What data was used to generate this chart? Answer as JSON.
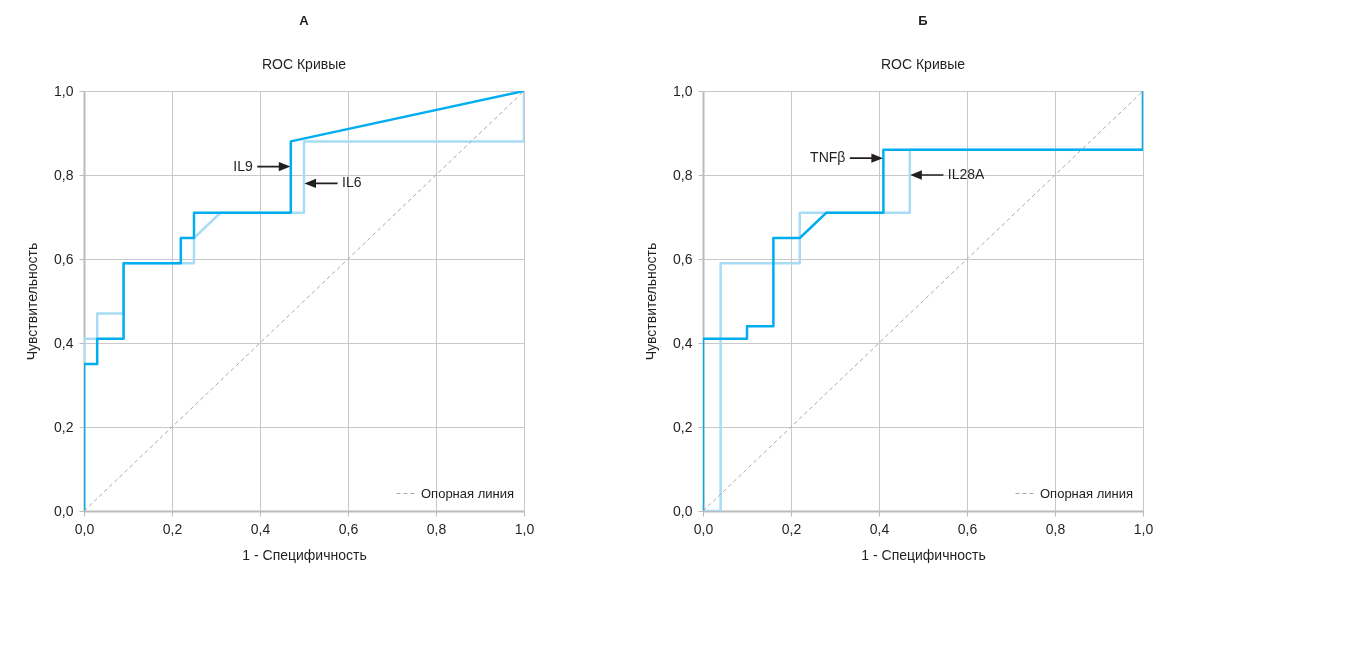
{
  "chart_data": [
    {
      "type": "line",
      "title": "А",
      "subtitle": "ROC Кривые",
      "xlabel": "1 - Специфичность",
      "ylabel": "Чувствительность",
      "xlim": [
        0,
        1
      ],
      "ylim": [
        0,
        1
      ],
      "xticks": [
        {
          "value": 0,
          "label": "0,0"
        },
        {
          "value": 0.2,
          "label": "0,2"
        },
        {
          "value": 0.4,
          "label": "0,4"
        },
        {
          "value": 0.6,
          "label": "0,6"
        },
        {
          "value": 0.8,
          "label": "0,8"
        },
        {
          "value": 1,
          "label": "1,0"
        }
      ],
      "yticks": [
        {
          "value": 0,
          "label": "0,0"
        },
        {
          "value": 0.2,
          "label": "0,2"
        },
        {
          "value": 0.4,
          "label": "0,4"
        },
        {
          "value": 0.6,
          "label": "0,6"
        },
        {
          "value": 0.8,
          "label": "0,8"
        },
        {
          "value": 1,
          "label": "1,0"
        }
      ],
      "grid": true,
      "legend": "bottom right",
      "series": [
        {
          "type": "line",
          "color": "#a8dcf5",
          "x": [
            0,
            0,
            0.03,
            0.03,
            0.09,
            0.09,
            0.25,
            0.25,
            0.31,
            0.5,
            0.5,
            1,
            1
          ],
          "values": [
            0,
            0.41,
            0.41,
            0.47,
            0.47,
            0.59,
            0.59,
            0.65,
            0.71,
            0.71,
            0.88,
            0.88,
            1
          ]
        },
        {
          "type": "line",
          "color": "#00aeef",
          "x": [
            0,
            0,
            0.03,
            0.03,
            0.09,
            0.09,
            0.22,
            0.22,
            0.25,
            0.25,
            0.47,
            0.47,
            1
          ],
          "values": [
            0,
            0.35,
            0.35,
            0.41,
            0.41,
            0.59,
            0.59,
            0.65,
            0.65,
            0.71,
            0.71,
            0.88,
            1
          ]
        },
        {
          "type": "line",
          "name": "Опорная линия",
          "color": "#aaaaaa",
          "line_style": "dashed",
          "x": [
            0,
            1
          ],
          "values": [
            0,
            1
          ]
        }
      ],
      "annotations": [
        {
          "text": "IL9",
          "x": 0.47,
          "y": 0.82
        },
        {
          "text": "IL6",
          "x": 0.5,
          "y": 0.78
        }
      ]
    },
    {
      "type": "line",
      "title": "Б",
      "subtitle": "ROC Кривые",
      "xlabel": "1 - Специфичность",
      "ylabel": "Чувствительность",
      "xlim": [
        0,
        1
      ],
      "ylim": [
        0,
        1
      ],
      "xticks": [
        {
          "value": 0,
          "label": "0,0"
        },
        {
          "value": 0.2,
          "label": "0,2"
        },
        {
          "value": 0.4,
          "label": "0,4"
        },
        {
          "value": 0.6,
          "label": "0,6"
        },
        {
          "value": 0.8,
          "label": "0,8"
        },
        {
          "value": 1,
          "label": "1,0"
        }
      ],
      "yticks": [
        {
          "value": 0,
          "label": "0,0"
        },
        {
          "value": 0.2,
          "label": "0,2"
        },
        {
          "value": 0.4,
          "label": "0,4"
        },
        {
          "value": 0.6,
          "label": "0,6"
        },
        {
          "value": 0.8,
          "label": "0,8"
        },
        {
          "value": 1,
          "label": "1,0"
        }
      ],
      "grid": true,
      "legend": "bottom right",
      "series": [
        {
          "type": "line",
          "color": "#a8dcf5",
          "x": [
            0,
            0.04,
            0.04,
            0.22,
            0.22,
            0.47,
            0.47,
            1,
            1
          ],
          "values": [
            0,
            0,
            0.59,
            0.59,
            0.71,
            0.71,
            0.86,
            0.86,
            1
          ]
        },
        {
          "type": "line",
          "color": "#00aeef",
          "x": [
            0,
            0,
            0.1,
            0.1,
            0.16,
            0.16,
            0.22,
            0.28,
            0.41,
            0.41,
            1,
            1
          ],
          "values": [
            0,
            0.41,
            0.41,
            0.44,
            0.44,
            0.65,
            0.65,
            0.71,
            0.71,
            0.86,
            0.86,
            1
          ]
        },
        {
          "type": "line",
          "name": "Опорная линия",
          "color": "#aaaaaa",
          "line_style": "dashed",
          "x": [
            0,
            1
          ],
          "values": [
            0,
            1
          ]
        }
      ],
      "annotations": [
        {
          "text": "TNFβ",
          "x": 0.41,
          "y": 0.84
        },
        {
          "text": "IL28A",
          "x": 0.47,
          "y": 0.8
        }
      ]
    }
  ]
}
